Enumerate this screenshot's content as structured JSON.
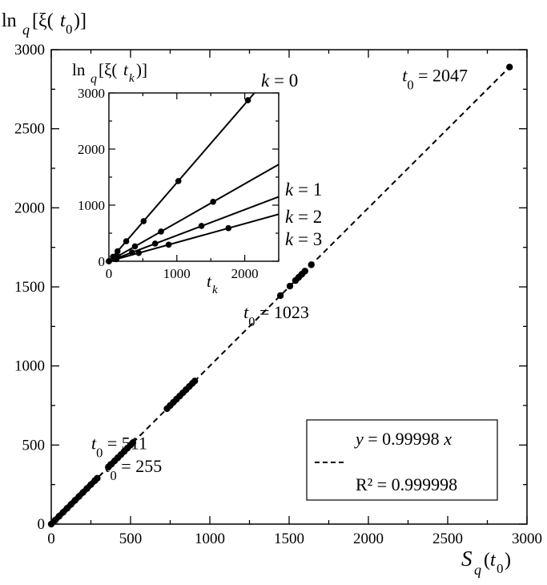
{
  "chart_data": [
    {
      "type": "scatter",
      "xlabel": "S_q(t_0)",
      "ylabel": "ln_q[ξ(t_0)]",
      "xlim": [
        0,
        3000
      ],
      "ylim": [
        0,
        3000
      ],
      "x_ticks": [
        "0",
        "500",
        "1000",
        "1500",
        "2000",
        "2500",
        "3000"
      ],
      "y_ticks": [
        "0",
        "500",
        "1000",
        "1500",
        "2000",
        "2500",
        "3000"
      ],
      "fit": {
        "slope": 0.99998,
        "style": "dashed",
        "x_range": [
          0,
          2890
        ]
      },
      "legend": {
        "equation": "y = 0.99998 x",
        "r2": "R² = 0.999998",
        "position": "bottom-right"
      },
      "series": [
        {
          "points": [
            [
              0,
              0
            ],
            [
              25,
              25
            ],
            [
              50,
              50
            ],
            [
              75,
              75
            ],
            [
              100,
              100
            ],
            [
              125,
              125
            ],
            [
              150,
              150
            ],
            [
              175,
              175
            ],
            [
              200,
              200
            ],
            [
              225,
              225
            ],
            [
              250,
              250
            ],
            [
              275,
              275
            ],
            [
              290,
              290
            ],
            [
              360,
              360
            ],
            [
              380,
              380
            ],
            [
              400,
              400
            ],
            [
              420,
              420
            ],
            [
              440,
              440
            ],
            [
              460,
              460
            ],
            [
              480,
              480
            ],
            [
              500,
              500
            ],
            [
              515,
              515
            ],
            [
              730,
              730
            ],
            [
              750,
              750
            ],
            [
              770,
              770
            ],
            [
              790,
              790
            ],
            [
              810,
              810
            ],
            [
              830,
              830
            ],
            [
              850,
              850
            ],
            [
              870,
              870
            ],
            [
              890,
              890
            ],
            [
              905,
              905
            ],
            [
              1445,
              1445
            ],
            [
              1505,
              1505
            ],
            [
              1540,
              1540
            ],
            [
              1560,
              1560
            ],
            [
              1580,
              1580
            ],
            [
              1600,
              1600
            ],
            [
              1640,
              1640
            ],
            [
              2890,
              2890
            ]
          ]
        }
      ],
      "annotations": [
        {
          "text": "t_0 = 255",
          "x": 290,
          "y": 290
        },
        {
          "text": "t_0 = 511",
          "x": 515,
          "y": 515
        },
        {
          "text": "t_0 = 1023",
          "x": 1445,
          "y": 1445
        },
        {
          "text": "t_0 = 2047",
          "x": 2890,
          "y": 2890
        }
      ]
    },
    {
      "type": "line",
      "xlabel": "t_k",
      "ylabel": "ln_q[ξ(t_k)]",
      "xlim": [
        0,
        2500
      ],
      "ylim": [
        0,
        3000
      ],
      "x_ticks": [
        "0",
        "1000",
        "2000"
      ],
      "y_ticks": [
        "0",
        "1000",
        "2000",
        "3000"
      ],
      "series": [
        {
          "name": "k = 0",
          "slope": 1.4,
          "points": [
            [
              0,
              0
            ],
            [
              60,
              80
            ],
            [
              127,
              178
            ],
            [
              255,
              357
            ],
            [
              511,
              715
            ],
            [
              1023,
              1430
            ],
            [
              2047,
              2870
            ]
          ]
        },
        {
          "name": "k = 1",
          "slope": 0.69,
          "points": [
            [
              0,
              0
            ],
            [
              127,
              88
            ],
            [
              383,
              265
            ],
            [
              767,
              530
            ],
            [
              1535,
              1060
            ]
          ]
        },
        {
          "name": "k = 2",
          "slope": 0.46,
          "points": [
            [
              0,
              0
            ],
            [
              85,
              40
            ],
            [
              340,
              157
            ],
            [
              680,
              315
            ],
            [
              1363,
              630
            ]
          ]
        },
        {
          "name": "k = 3",
          "slope": 0.335,
          "points": [
            [
              0,
              0
            ],
            [
              110,
              37
            ],
            [
              440,
              148
            ],
            [
              880,
              295
            ],
            [
              1760,
              590
            ]
          ]
        }
      ]
    }
  ]
}
